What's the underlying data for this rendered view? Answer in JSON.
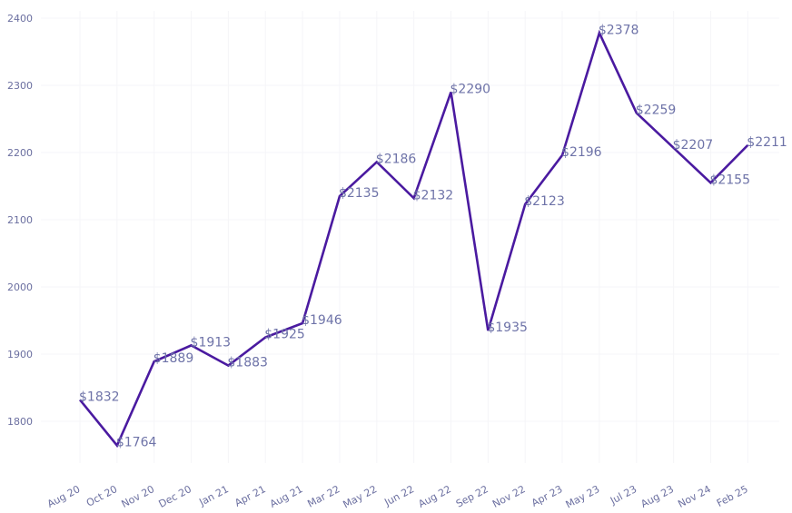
{
  "chart_data": {
    "type": "line",
    "title": "",
    "xlabel": "",
    "ylabel": "",
    "ylim": [
      1710,
      2410
    ],
    "yticks": [
      1800,
      1900,
      2000,
      2100,
      2200,
      2300,
      2400
    ],
    "grid": true,
    "categories": [
      "Aug 20",
      "Oct 20",
      "Nov 20",
      "Dec 20",
      "Jan 21",
      "Apr 21",
      "Aug 21",
      "Mar 22",
      "May 22",
      "Jun 22",
      "Aug 22",
      "Sep 22",
      "Nov 22",
      "Apr 23",
      "May 23",
      "Jul 23",
      "Aug 23",
      "Nov 24",
      "Feb 25"
    ],
    "values": [
      1832,
      1764,
      1889,
      1913,
      1883,
      1925,
      1946,
      2135,
      2186,
      2132,
      2290,
      1935,
      2123,
      2196,
      2378,
      2259,
      2207,
      2155,
      2211
    ],
    "data_labels": [
      "$1832",
      "$1764",
      "$1889",
      "$1913",
      "$1883",
      "$1925",
      "$1946",
      "$2135",
      "$2186",
      "$2132",
      "$2290",
      "$1935",
      "$2123",
      "$2196",
      "$2378",
      "$2259",
      "$2207",
      "$2155",
      "$2211"
    ],
    "line_color": "#4a1aa0"
  }
}
